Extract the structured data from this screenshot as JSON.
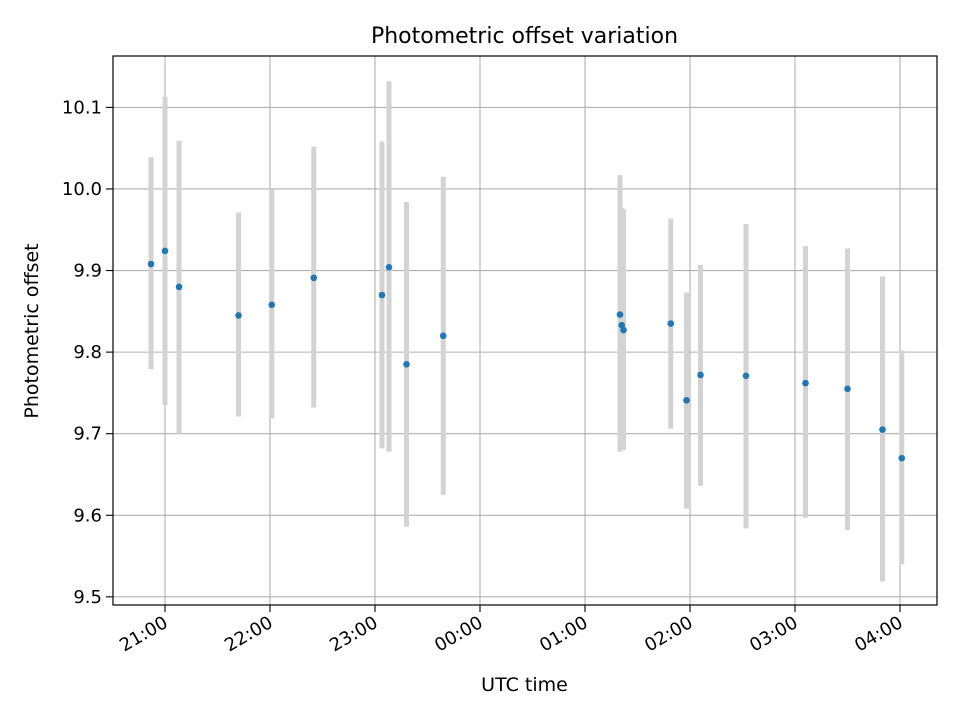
{
  "chart_data": {
    "type": "scatter",
    "title": "Photometric offset variation",
    "xlabel": "UTC time",
    "ylabel": "Photometric offset",
    "x_tick_labels": [
      "21:00",
      "22:00",
      "23:00",
      "00:00",
      "01:00",
      "02:00",
      "03:00",
      "04:00"
    ],
    "y_tick_labels": [
      "9.5",
      "9.6",
      "9.7",
      "9.8",
      "9.9",
      "10.0",
      "10.1"
    ],
    "ylim": [
      9.49,
      10.163
    ],
    "grid": true,
    "marker_color": "#1f77b4",
    "errorbar_color": "#d3d3d3",
    "points": [
      {
        "time": "20:52",
        "value": 9.908,
        "low": 9.779,
        "high": 10.039
      },
      {
        "time": "21:00",
        "value": 9.924,
        "low": 9.735,
        "high": 10.113
      },
      {
        "time": "21:08",
        "value": 9.88,
        "low": 9.7,
        "high": 10.059
      },
      {
        "time": "21:42",
        "value": 9.845,
        "low": 9.721,
        "high": 9.971
      },
      {
        "time": "22:01",
        "value": 9.858,
        "low": 9.719,
        "high": 9.999
      },
      {
        "time": "22:25",
        "value": 9.891,
        "low": 9.732,
        "high": 10.052
      },
      {
        "time": "23:04",
        "value": 9.87,
        "low": 9.682,
        "high": 10.058
      },
      {
        "time": "23:08",
        "value": 9.904,
        "low": 9.678,
        "high": 10.132
      },
      {
        "time": "23:18",
        "value": 9.785,
        "low": 9.586,
        "high": 9.984
      },
      {
        "time": "23:39",
        "value": 9.82,
        "low": 9.625,
        "high": 10.015
      },
      {
        "time": "01:20",
        "value": 9.846,
        "low": 9.678,
        "high": 10.017
      },
      {
        "time": "01:21",
        "value": 9.833,
        "low": 9.681,
        "high": 9.977
      },
      {
        "time": "01:22",
        "value": 9.827,
        "low": 9.68,
        "high": 9.975
      },
      {
        "time": "01:49",
        "value": 9.835,
        "low": 9.706,
        "high": 9.964
      },
      {
        "time": "01:58",
        "value": 9.741,
        "low": 9.608,
        "high": 9.873
      },
      {
        "time": "02:06",
        "value": 9.772,
        "low": 9.636,
        "high": 9.907
      },
      {
        "time": "02:32",
        "value": 9.771,
        "low": 9.584,
        "high": 9.957
      },
      {
        "time": "03:06",
        "value": 9.762,
        "low": 9.597,
        "high": 9.93
      },
      {
        "time": "03:30",
        "value": 9.755,
        "low": 9.582,
        "high": 9.927
      },
      {
        "time": "03:50",
        "value": 9.705,
        "low": 9.519,
        "high": 9.893
      },
      {
        "time": "04:01",
        "value": 9.67,
        "low": 9.54,
        "high": 9.802
      }
    ]
  }
}
